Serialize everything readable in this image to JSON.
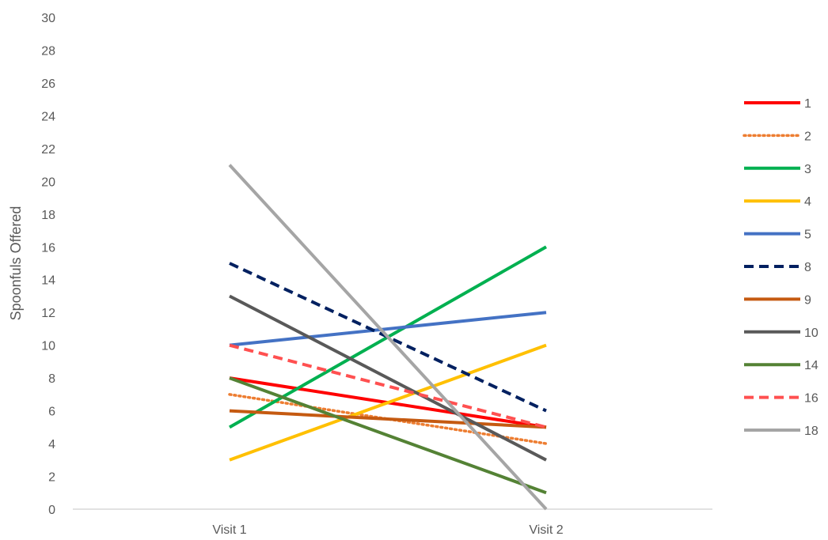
{
  "chart_data": {
    "type": "line",
    "title": "",
    "xlabel": "",
    "ylabel": "Spoonfuls Offered",
    "categories": [
      "Visit 1",
      "Visit 2"
    ],
    "ylim": [
      0,
      30
    ],
    "yticks": [
      "0",
      "2",
      "4",
      "6",
      "8",
      "10",
      "12",
      "14",
      "16",
      "18",
      "20",
      "22",
      "24",
      "26",
      "28",
      "30"
    ],
    "grid": false,
    "legend_position": "right",
    "series": [
      {
        "name": "1",
        "values": [
          8,
          5
        ],
        "color": "#FF0000",
        "dash": "solid"
      },
      {
        "name": "2",
        "values": [
          7,
          4
        ],
        "color": "#ED7D31",
        "dash": "dotted"
      },
      {
        "name": "3",
        "values": [
          5,
          16
        ],
        "color": "#00B050",
        "dash": "solid"
      },
      {
        "name": "4",
        "values": [
          3,
          10
        ],
        "color": "#FFC000",
        "dash": "solid"
      },
      {
        "name": "5",
        "values": [
          10,
          12
        ],
        "color": "#4472C4",
        "dash": "solid"
      },
      {
        "name": "8",
        "values": [
          15,
          6
        ],
        "color": "#002060",
        "dash": "dashed"
      },
      {
        "name": "9",
        "values": [
          6,
          5
        ],
        "color": "#C55A11",
        "dash": "solid"
      },
      {
        "name": "10",
        "values": [
          13,
          3
        ],
        "color": "#595959",
        "dash": "solid"
      },
      {
        "name": "14",
        "values": [
          8,
          1
        ],
        "color": "#548235",
        "dash": "solid"
      },
      {
        "name": "16",
        "values": [
          10,
          5
        ],
        "color": "#FF5050",
        "dash": "dashed"
      },
      {
        "name": "18",
        "values": [
          21,
          0
        ],
        "color": "#A5A5A5",
        "dash": "solid"
      }
    ]
  }
}
